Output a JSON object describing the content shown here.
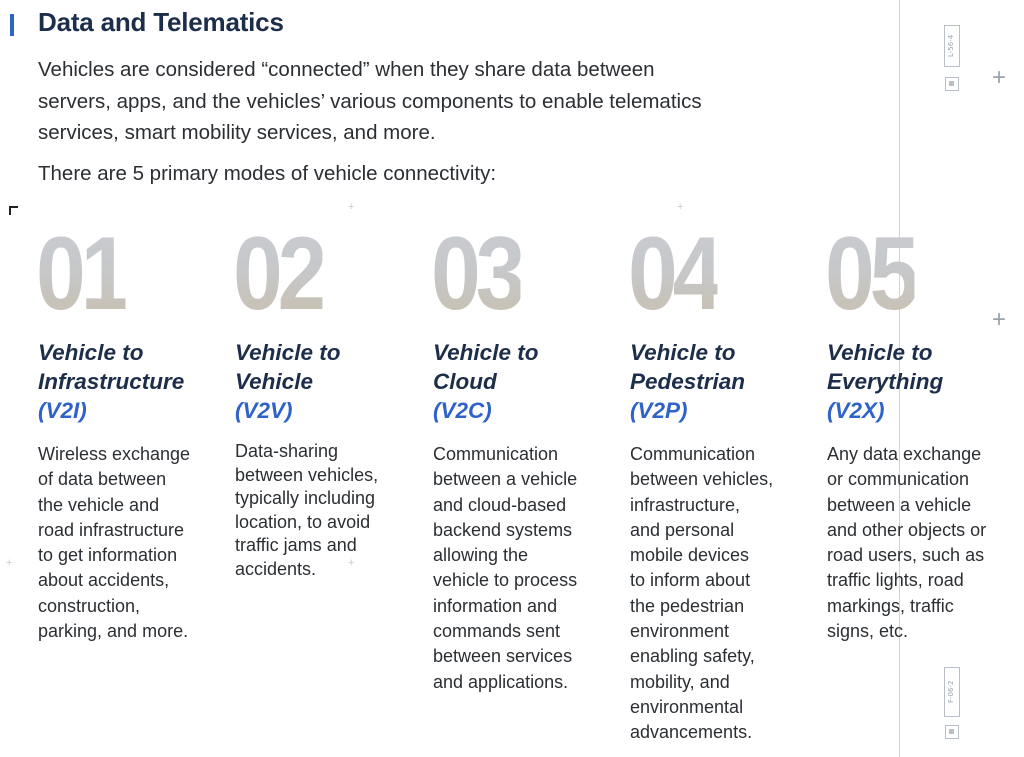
{
  "section": {
    "title": "Data and Telematics",
    "intro_lines": [
      "Vehicles are considered “connected” when they share data between",
      "servers, apps, and the vehicles’ various components to enable telematics",
      "services, smart mobility services, and more."
    ],
    "modes_intro": "There are 5 primary modes of vehicle connectivity:"
  },
  "colors": {
    "accent": "#2f63c9",
    "heading": "#1c2e4a",
    "body_text": "#2b2f33"
  },
  "registration_marks": {
    "top_tag": "L-56-4",
    "bottom_tag": "F-06-2"
  },
  "modes": [
    {
      "number": "01",
      "heading_lines": [
        "Vehicle to",
        "Infrastructure"
      ],
      "code": "(V2I)",
      "description_lines": [
        "Wireless exchange",
        "of data between",
        "the vehicle and",
        "road infrastructure",
        "to get information",
        "about accidents,",
        "construction,",
        "parking, and more."
      ]
    },
    {
      "number": "02",
      "heading_lines": [
        "Vehicle to",
        "Vehicle"
      ],
      "code": "(V2V)",
      "description_lines": [
        "Data-sharing",
        "between vehicles,",
        "typically including",
        "location, to avoid",
        "traffic jams and",
        "accidents."
      ]
    },
    {
      "number": "03",
      "heading_lines": [
        "Vehicle to",
        "Cloud"
      ],
      "code": "(V2C)",
      "description_lines": [
        "Communication",
        "between a vehicle",
        "and cloud-based",
        "backend systems",
        "allowing the",
        "vehicle to process",
        "information and",
        "commands sent",
        "between services",
        "and applications."
      ]
    },
    {
      "number": "04",
      "heading_lines": [
        "Vehicle to",
        "Pedestrian"
      ],
      "code": "(V2P)",
      "description_lines": [
        "Communication",
        "between vehicles,",
        "infrastructure,",
        "and personal",
        "mobile devices",
        "to inform about",
        "the pedestrian",
        "environment",
        "enabling safety,",
        "mobility, and",
        "environmental",
        "advancements."
      ]
    },
    {
      "number": "05",
      "heading_lines": [
        "Vehicle to",
        "Everything"
      ],
      "code": "(V2X)",
      "description_lines": [
        "Any data exchange",
        "or communication",
        "between a vehicle",
        "and other objects or",
        "road users, such as",
        "traffic lights, road",
        "markings, traffic",
        "signs, etc."
      ]
    }
  ]
}
